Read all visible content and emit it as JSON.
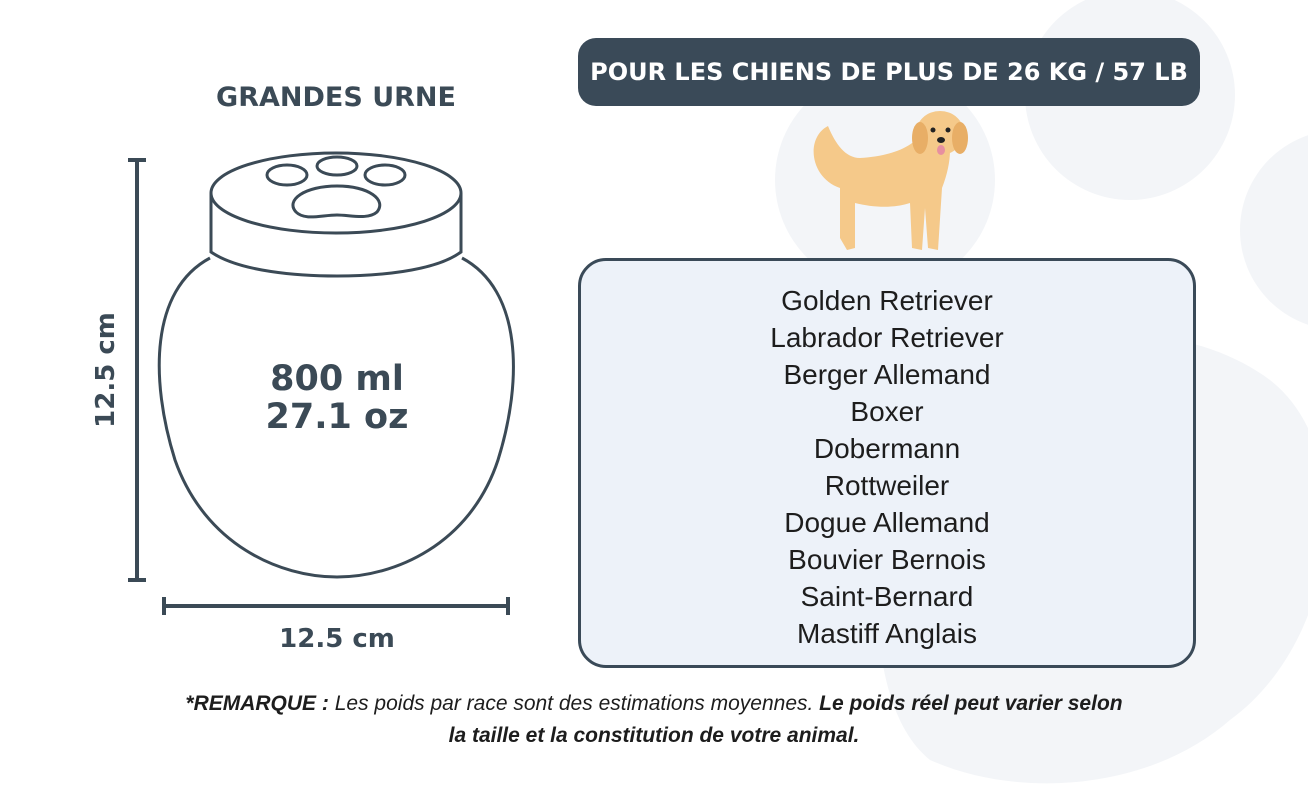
{
  "urn": {
    "title": "GRANDES URNE",
    "capacity_ml": "800 ml",
    "capacity_oz": "27.1 oz",
    "height": "12.5 cm",
    "width": "12.5 cm"
  },
  "banner": "POUR LES CHIENS DE PLUS DE 26 KG / 57 LB",
  "breeds": [
    "Golden Retriever",
    "Labrador Retriever",
    "Berger Allemand",
    "Boxer",
    "Dobermann",
    "Rottweiler",
    "Dogue Allemand",
    "Bouvier Bernois",
    "Saint-Bernard",
    "Mastiff Anglais"
  ],
  "note": {
    "label": "*REMARQUE :",
    "text": " Les poids par race sont des estimations moyennes. ",
    "bold": "Le poids réel peut varier selon la taille et la constitution de votre animal."
  },
  "colors": {
    "dark": "#3a4a58",
    "box_fill": "#edf2f9",
    "dog": "#f5c98a",
    "paw_bg": "#f2f4f7"
  }
}
